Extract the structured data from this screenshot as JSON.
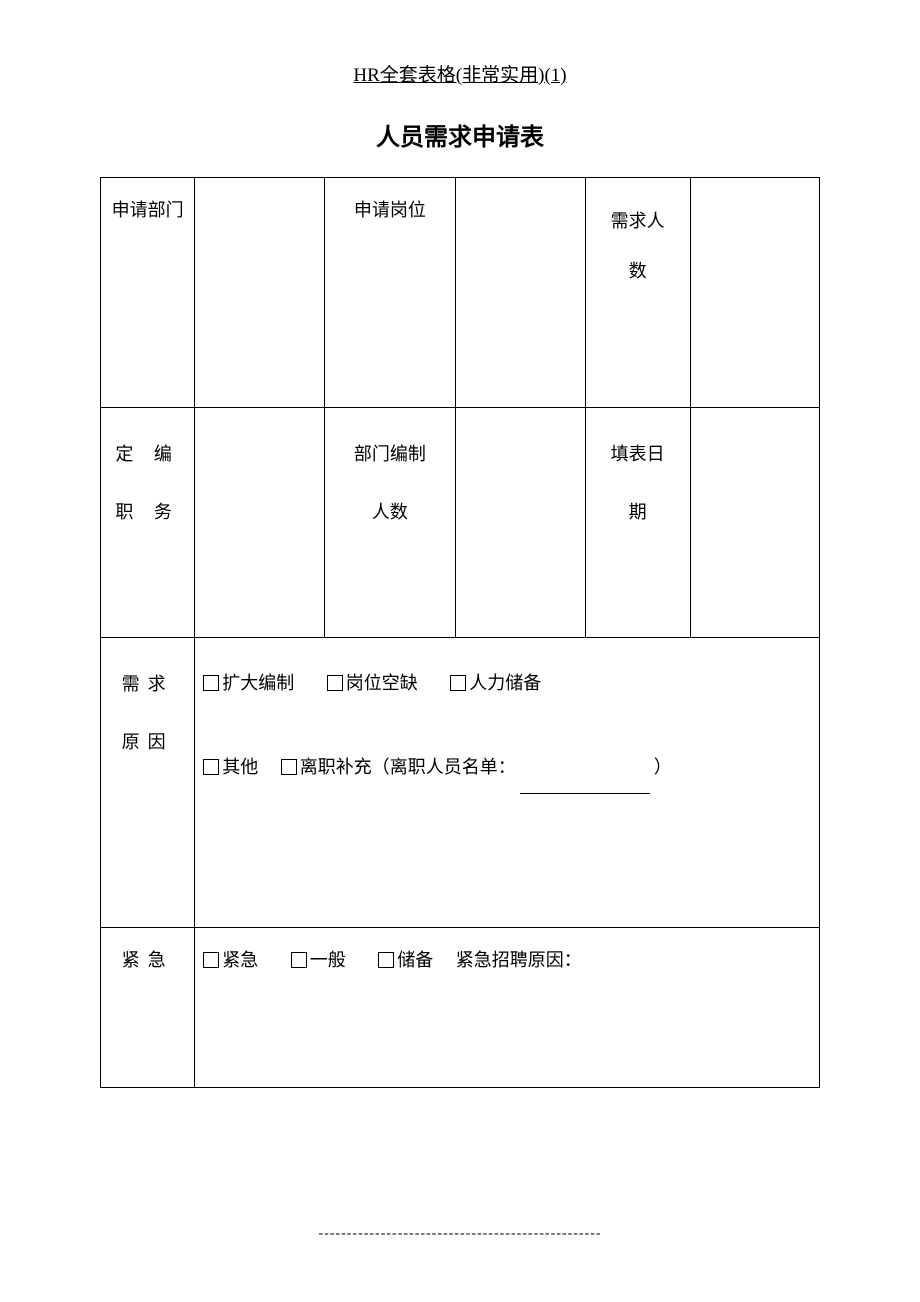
{
  "page_header": "HR全套表格(非常实用)(1)",
  "form_title": "人员需求申请表",
  "row1": {
    "dept_label": "申请部门",
    "position_label": "申请岗位",
    "headcount_label_l1": "需求人",
    "headcount_label_l2": "数"
  },
  "row2": {
    "fixed_title_l1": "定 编",
    "fixed_title_l2": "职 务",
    "dept_count_l1": "部门编制",
    "dept_count_l2": "人数",
    "fill_date_l1": "填表日",
    "fill_date_l2": "期"
  },
  "row3": {
    "label_l1": "需求",
    "label_l2": "原因",
    "opt_expand": "扩大编制",
    "opt_vacancy": "岗位空缺",
    "opt_reserve": "人力储备",
    "opt_other": "其他",
    "opt_resign_prefix": "离职补充（离职人员名单：",
    "opt_resign_suffix": "）"
  },
  "row4": {
    "label": "紧急",
    "opt_urgent": "紧急",
    "opt_normal": "一般",
    "opt_reserve": "储备",
    "trailing": "紧急招聘原因："
  },
  "footer": "--------------------------------------------------",
  "colors": {
    "border": "#000000",
    "background": "#ffffff",
    "text": "#000000"
  }
}
